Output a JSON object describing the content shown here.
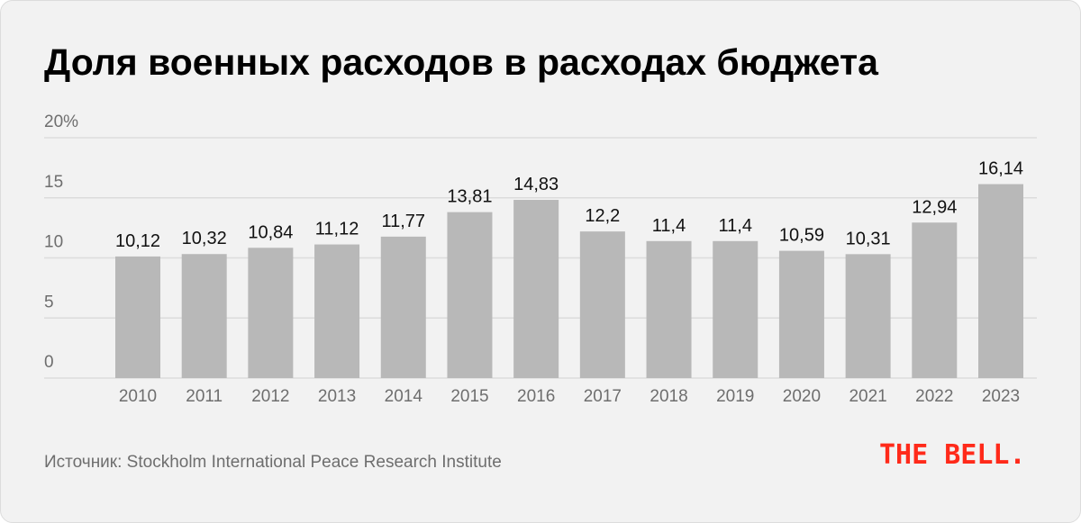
{
  "title": "Доля военных расходов в расходах бюджета",
  "source": "Источник: Stockholm International Peace Research Institute",
  "logo": "THE BELL.",
  "colors": {
    "background": "#f2f2f2",
    "bar": "#b8b8b8",
    "grid": "#dcdcdc",
    "axis_text": "#6e6e6e",
    "label_text": "#111111",
    "logo": "#ff2a1a"
  },
  "chart_data": {
    "type": "bar",
    "title": "Доля военных расходов в расходах бюджета",
    "xlabel": "",
    "ylabel": "",
    "categories": [
      "2010",
      "2011",
      "2012",
      "2013",
      "2014",
      "2015",
      "2016",
      "2017",
      "2018",
      "2019",
      "2020",
      "2021",
      "2022",
      "2023"
    ],
    "values": [
      10.12,
      10.32,
      10.84,
      11.12,
      11.77,
      13.81,
      14.83,
      12.2,
      11.4,
      11.4,
      10.59,
      10.31,
      12.94,
      16.14
    ],
    "value_labels": [
      "10,12",
      "10,32",
      "10,84",
      "11,12",
      "11,77",
      "13,81",
      "14,83",
      "12,2",
      "11,4",
      "11,4",
      "10,59",
      "10,31",
      "12,94",
      "16,14"
    ],
    "y_ticks": [
      0,
      5,
      10,
      15,
      20
    ],
    "y_tick_labels": [
      "0",
      "5",
      "10",
      "15",
      "20%"
    ],
    "ylim": [
      0,
      20
    ],
    "grid": true,
    "legend": "none"
  }
}
